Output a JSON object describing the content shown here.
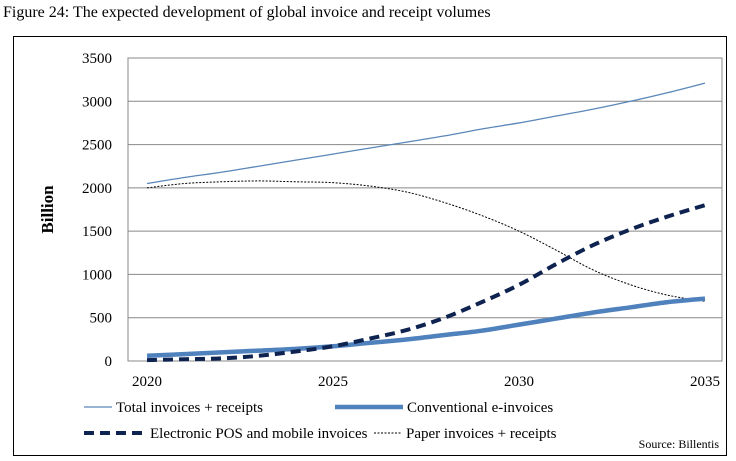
{
  "chart_data": {
    "type": "line",
    "title": "Figure 24: The expected development of global invoice and receipt volumes",
    "ylabel": "Billion",
    "xlabel": "",
    "ylim": [
      0,
      3500
    ],
    "xlim": [
      2020,
      2035
    ],
    "yticks": [
      "0",
      "500",
      "1000",
      "1500",
      "2000",
      "2500",
      "3000",
      "3500"
    ],
    "xticks": [
      "2020",
      "2025",
      "2030",
      "2035"
    ],
    "grid": true,
    "legend": "bottom",
    "source": "Source: Billentis",
    "x": [
      2020,
      2021,
      2022,
      2023,
      2024,
      2025,
      2026,
      2027,
      2028,
      2029,
      2030,
      2031,
      2032,
      2033,
      2034,
      2035
    ],
    "series": [
      {
        "name": "Total invoices + receipts",
        "color": "#5b87b8",
        "style": "thin-solid",
        "values": [
          2050,
          2120,
          2180,
          2250,
          2320,
          2390,
          2460,
          2530,
          2600,
          2680,
          2750,
          2830,
          2910,
          3000,
          3100,
          3210
        ]
      },
      {
        "name": "Conventional e-invoices",
        "color": "#4f81bd",
        "style": "thick-solid",
        "values": [
          60,
          80,
          100,
          120,
          140,
          170,
          210,
          250,
          300,
          350,
          420,
          490,
          560,
          620,
          680,
          720
        ]
      },
      {
        "name": "Electronic POS and mobile invoices",
        "color": "#0f2350",
        "style": "thick-dashed",
        "values": [
          10,
          20,
          30,
          60,
          110,
          170,
          260,
          360,
          500,
          680,
          880,
          1120,
          1340,
          1520,
          1670,
          1800
        ]
      },
      {
        "name": "Paper invoices + receipts",
        "color": "#000000",
        "style": "thin-dotted",
        "values": [
          2000,
          2050,
          2070,
          2080,
          2070,
          2060,
          2020,
          1950,
          1830,
          1680,
          1500,
          1280,
          1050,
          880,
          760,
          690
        ]
      }
    ]
  }
}
